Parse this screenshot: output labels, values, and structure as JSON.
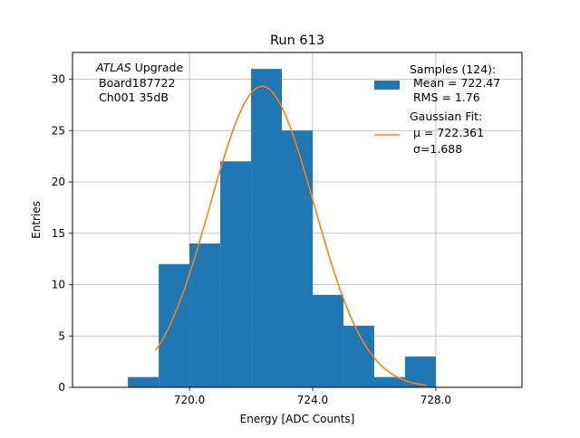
{
  "chart_data": {
    "type": "bar",
    "title": "Run 613",
    "xlabel": "Energy [ADC Counts]",
    "ylabel": "Entries",
    "xlim": [
      716.2,
      730.8
    ],
    "ylim": [
      0,
      32.6
    ],
    "grid": true,
    "xticks": [
      720,
      724,
      728
    ],
    "xtick_labels": [
      "720.0",
      "724.0",
      "728.0"
    ],
    "yticks": [
      0,
      5,
      10,
      15,
      20,
      25,
      30
    ],
    "ytick_labels": [
      "0",
      "5",
      "10",
      "15",
      "20",
      "25",
      "30"
    ],
    "hist_color": "#1f77b4",
    "fit_color": "#ff7f0e",
    "bins": [
      718,
      719,
      720,
      721,
      722,
      723,
      724,
      725,
      726,
      727,
      728
    ],
    "counts": [
      1,
      12,
      14,
      22,
      31,
      25,
      9,
      6,
      1,
      3
    ],
    "series": [
      {
        "name": "Samples (124):",
        "stats": [
          "Mean = 722.47",
          "RMS = 1.76"
        ]
      },
      {
        "name": "Gaussian Fit:",
        "stats": [
          "μ = 722.361",
          "σ=1.688"
        ],
        "mu": 722.361,
        "sigma": 1.688,
        "n": 124,
        "bin_width": 1,
        "x_range": [
          718.9,
          727.7
        ]
      }
    ],
    "annotation": {
      "atlas": "ATLAS",
      "line1": " Upgrade",
      "line2": "Board187722",
      "line3": "Ch001 35dB"
    },
    "legend_position": "top-right"
  }
}
